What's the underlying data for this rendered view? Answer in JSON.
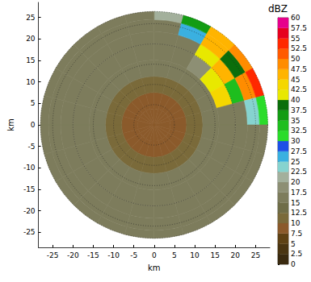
{
  "chart_data": {
    "type": "heatmap",
    "xlabel": "km",
    "ylabel": "km",
    "xlim": [
      -28.5,
      28.5
    ],
    "ylim": [
      -28.5,
      28.5
    ],
    "xticks": [
      -25,
      -20,
      -15,
      -10,
      -5,
      0,
      5,
      10,
      15,
      20,
      25
    ],
    "yticks": [
      -25,
      -20,
      -15,
      -10,
      -5,
      0,
      5,
      10,
      15,
      20,
      25
    ],
    "grid": true,
    "range_edges": [
      0,
      4,
      8,
      12,
      16,
      20,
      23,
      26,
      28
    ],
    "azimuth_edges": [
      0,
      15,
      30,
      45,
      60,
      75,
      90,
      105,
      120,
      135,
      150,
      165,
      180,
      195,
      210,
      225,
      240,
      255,
      270,
      285,
      300,
      315,
      330,
      345,
      360
    ],
    "cells": [
      [
        9,
        9,
        9,
        9,
        9,
        9,
        9,
        9,
        9,
        9,
        9,
        9,
        9,
        9,
        9,
        9,
        9,
        9,
        9,
        9,
        9,
        9,
        9,
        9
      ],
      [
        9,
        9,
        9,
        9,
        9,
        9,
        9,
        9,
        9,
        9,
        9,
        9,
        9,
        9,
        9,
        9,
        9,
        9,
        9,
        9,
        9,
        9,
        9,
        9
      ],
      [
        11,
        11,
        11,
        11,
        11,
        11,
        11,
        11,
        11,
        11,
        11,
        11,
        11,
        11,
        11,
        11,
        11,
        11,
        11,
        11,
        11,
        11,
        11,
        11
      ],
      [
        16,
        16,
        16,
        17,
        17,
        16,
        16,
        16,
        16,
        16,
        16,
        16,
        16,
        16,
        16,
        16,
        16,
        16,
        16,
        16,
        16,
        16,
        16,
        16
      ],
      [
        16,
        16,
        18,
        42,
        44,
        16,
        16,
        16,
        16,
        16,
        16,
        16,
        16,
        16,
        16,
        16,
        16,
        16,
        16,
        16,
        16,
        16,
        16,
        16
      ],
      [
        16,
        17,
        40,
        47,
        33,
        16,
        16,
        16,
        16,
        16,
        16,
        16,
        16,
        16,
        16,
        16,
        16,
        16,
        16,
        16,
        16,
        16,
        16,
        16
      ],
      [
        17,
        26,
        47,
        38,
        48,
        24,
        16,
        16,
        16,
        16,
        16,
        16,
        16,
        16,
        16,
        16,
        16,
        16,
        16,
        16,
        16,
        16,
        16,
        16
      ],
      [
        22,
        36,
        46,
        48,
        53,
        30,
        16,
        16,
        16,
        16,
        16,
        16,
        16,
        16,
        16,
        16,
        16,
        16,
        16,
        16,
        16,
        16,
        16,
        16
      ]
    ],
    "colorbar": {
      "title": "dBZ",
      "range": [
        0,
        60
      ],
      "ticks": [
        0,
        2.5,
        5,
        7.5,
        10,
        12.5,
        15,
        17.5,
        20,
        22.5,
        25,
        27.5,
        30,
        32.5,
        35,
        37.5,
        40,
        42.5,
        45,
        47.5,
        50,
        52.5,
        55,
        57.5,
        60
      ],
      "colors": [
        "#3a2a10",
        "#4a3512",
        "#5e4215",
        "#8b5a2b",
        "#7a6a3a",
        "#6f6d48",
        "#7d7c5c",
        "#8d8f74",
        "#a3b09c",
        "#86d3cf",
        "#3ab0e0",
        "#1e50e6",
        "#2adc2a",
        "#1ebe1e",
        "#139c13",
        "#0b6e0b",
        "#e8e800",
        "#f5d700",
        "#ffb400",
        "#ff8c00",
        "#ff5a00",
        "#ff2800",
        "#e6001e",
        "#e6008c"
      ]
    }
  }
}
